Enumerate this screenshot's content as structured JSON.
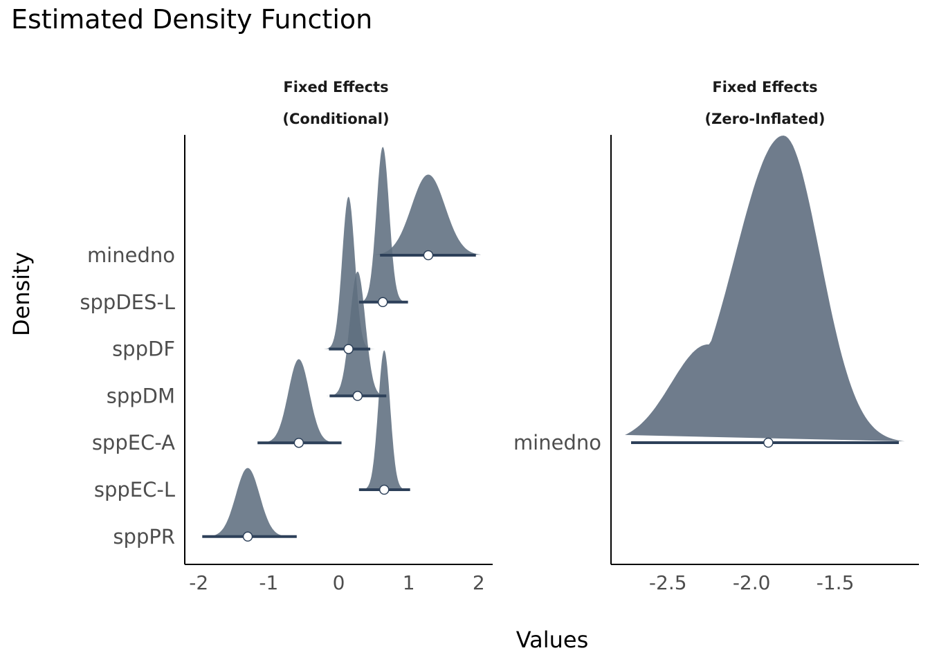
{
  "title": "Estimated Density Function",
  "xlabel": "Values",
  "ylabel": "Density",
  "colors": {
    "fill": "#5f6e80",
    "interval": "#2d4059",
    "point_fill": "#ffffff",
    "axis": "#000000"
  },
  "chart_data": [
    {
      "type": "density",
      "panel": "conditional",
      "facet_title": [
        "Fixed Effects",
        "(Conditional)"
      ],
      "xlim": [
        -2.2,
        2.2
      ],
      "xticks": [
        -2,
        -1,
        0,
        1,
        2
      ],
      "xtick_labels": [
        "-2",
        "-1",
        "0",
        "1",
        "2"
      ],
      "categories": [
        "minedno",
        "sppDES-L",
        "sppDF",
        "sppDM",
        "sppEC-A",
        "sppEC-L",
        "sppPR"
      ],
      "series": [
        {
          "name": "minedno",
          "median": 1.28,
          "ci": [
            0.59,
            1.96
          ],
          "sd": 0.24,
          "height": 1.88
        },
        {
          "name": "sppDES-L",
          "median": 0.63,
          "ci": [
            0.29,
            0.99
          ],
          "sd": 0.09,
          "height": 3.62
        },
        {
          "name": "sppDF",
          "median": 0.14,
          "ci": [
            -0.14,
            0.45
          ],
          "sd": 0.09,
          "height": 3.55
        },
        {
          "name": "sppDM",
          "median": 0.27,
          "ci": [
            -0.13,
            0.68
          ],
          "sd": 0.11,
          "height": 2.9
        },
        {
          "name": "sppEC-A",
          "median": -0.57,
          "ci": [
            -1.16,
            0.04
          ],
          "sd": 0.15,
          "height": 1.95
        },
        {
          "name": "sppEC-L",
          "median": 0.65,
          "ci": [
            0.29,
            1.02
          ],
          "sd": 0.085,
          "height": 3.25
        },
        {
          "name": "sppPR",
          "median": -1.3,
          "ci": [
            -1.95,
            -0.6
          ],
          "sd": 0.17,
          "height": 1.6
        }
      ]
    },
    {
      "type": "density",
      "panel": "zero-inflated",
      "facet_title": [
        "Fixed Effects",
        "(Zero-Inflated)"
      ],
      "xlim": [
        -2.84,
        -1.0
      ],
      "xticks": [
        -2.5,
        -2.0,
        -1.5
      ],
      "xtick_labels": [
        "-2.5",
        "-2.0",
        "-1.5"
      ],
      "categories": [
        "minedno"
      ],
      "series": [
        {
          "name": "minedno",
          "median": -1.9,
          "ci": [
            -2.72,
            -1.12
          ],
          "mode": -1.81,
          "sd_left": 0.29,
          "sd_right": 0.22,
          "height": 1.0
        }
      ]
    }
  ]
}
